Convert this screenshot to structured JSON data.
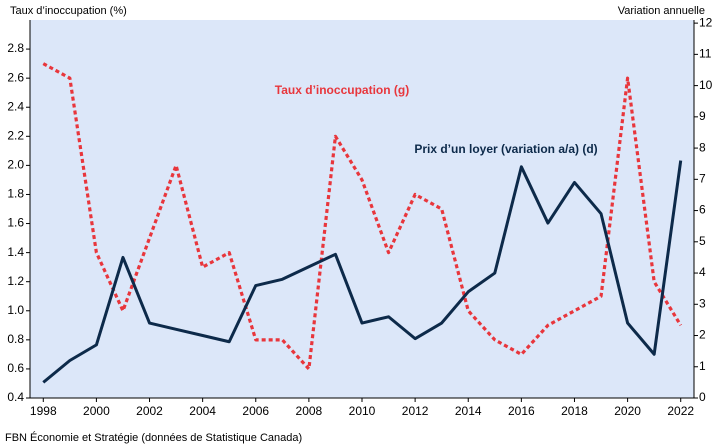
{
  "chart_data": {
    "type": "line",
    "y_label": "Taux d’inoccupation (%)",
    "y2_label": "Variation annuelle",
    "source": "FBN Économie et Stratégie (données de Statistique Canada)",
    "x": [
      1998,
      1999,
      2000,
      2001,
      2002,
      2003,
      2004,
      2005,
      2006,
      2007,
      2008,
      2009,
      2010,
      2011,
      2012,
      2013,
      2014,
      2015,
      2016,
      2017,
      2018,
      2019,
      2020,
      2021,
      2022
    ],
    "series": [
      {
        "name": "Taux d’inoccupation (g)",
        "color": "#e8363c",
        "axis": "y",
        "values": [
          2.7,
          2.6,
          1.4,
          1.0,
          1.5,
          2.0,
          1.3,
          1.4,
          0.8,
          0.8,
          0.6,
          2.2,
          1.9,
          1.4,
          1.8,
          1.7,
          1.0,
          0.8,
          0.7,
          0.9,
          1.0,
          1.1,
          2.6,
          1.2,
          0.9
        ]
      },
      {
        "name": "Prix d’un loyer (variation a/a) (d)",
        "color": "#0d2a4a",
        "axis": "y2",
        "values": [
          0.5,
          1.2,
          1.7,
          4.5,
          2.4,
          2.2,
          2.0,
          1.8,
          3.6,
          3.8,
          4.2,
          4.6,
          2.4,
          2.6,
          1.9,
          2.4,
          3.4,
          4.0,
          7.4,
          5.6,
          6.9,
          5.9,
          2.4,
          1.4,
          7.6
        ]
      }
    ],
    "xlim": [
      1997.5,
      2022.5
    ],
    "xticks": [
      1998,
      2000,
      2002,
      2004,
      2006,
      2008,
      2010,
      2012,
      2014,
      2016,
      2018,
      2020,
      2022
    ],
    "ylim": [
      0.4,
      3.0
    ],
    "yticks": [
      0.4,
      0.6,
      0.8,
      {
        "value": 1.0,
        "label": "1.0"
      },
      1.2,
      1.4,
      1.6,
      1.8,
      {
        "value": 2.0,
        "label": "2.0"
      },
      2.2,
      2.4,
      2.6,
      2.8
    ],
    "y2lim": [
      0,
      12.1
    ],
    "y2ticks": [
      0,
      1,
      2,
      3,
      4,
      5,
      6,
      7,
      8,
      9,
      10,
      11,
      12
    ]
  }
}
